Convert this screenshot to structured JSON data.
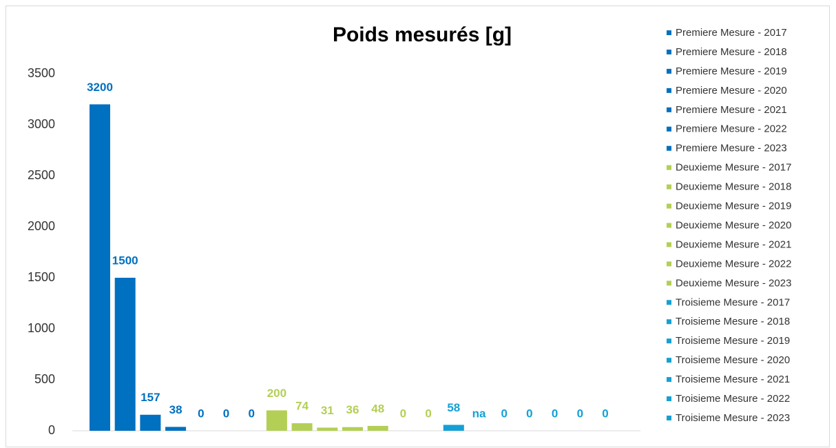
{
  "chart_data": {
    "type": "bar",
    "title": "Poids mesurés [g]",
    "ylim": [
      0,
      3500
    ],
    "yticks": [
      0,
      500,
      1000,
      1500,
      2000,
      2500,
      3000,
      3500
    ],
    "grid": false,
    "legend": "right",
    "series": [
      {
        "name": "Premiere Mesure - 2017",
        "color": "#0070c0",
        "values": [
          3200
        ]
      },
      {
        "name": "Premiere Mesure - 2018",
        "color": "#0070c0",
        "values": [
          1500
        ]
      },
      {
        "name": "Premiere Mesure - 2019",
        "color": "#0070c0",
        "values": [
          157
        ]
      },
      {
        "name": "Premiere Mesure - 2020",
        "color": "#0070c0",
        "values": [
          38
        ]
      },
      {
        "name": "Premiere Mesure - 2021",
        "color": "#0070c0",
        "values": [
          0
        ]
      },
      {
        "name": "Premiere Mesure - 2022",
        "color": "#0070c0",
        "values": [
          0
        ]
      },
      {
        "name": "Premiere Mesure - 2023",
        "color": "#0070c0",
        "values": [
          0
        ]
      },
      {
        "name": "Deuxieme Mesure - 2017",
        "color": "#b3cf55",
        "values": [
          200
        ]
      },
      {
        "name": "Deuxieme Mesure - 2018",
        "color": "#b3cf55",
        "values": [
          74
        ]
      },
      {
        "name": "Deuxieme Mesure - 2019",
        "color": "#b3cf55",
        "values": [
          31
        ]
      },
      {
        "name": "Deuxieme Mesure - 2020",
        "color": "#b3cf55",
        "values": [
          36
        ]
      },
      {
        "name": "Deuxieme Mesure - 2021",
        "color": "#b3cf55",
        "values": [
          48
        ]
      },
      {
        "name": "Deuxieme Mesure - 2022",
        "color": "#b3cf55",
        "values": [
          0
        ]
      },
      {
        "name": "Deuxieme Mesure - 2023",
        "color": "#b3cf55",
        "values": [
          0
        ]
      },
      {
        "name": "Troisieme Mesure - 2017",
        "color": "#14a0d6",
        "values": [
          58
        ]
      },
      {
        "name": "Troisieme Mesure - 2018",
        "color": "#14a0d6",
        "values": [
          null
        ],
        "value_labels": [
          "na"
        ]
      },
      {
        "name": "Troisieme Mesure - 2019",
        "color": "#14a0d6",
        "values": [
          0
        ]
      },
      {
        "name": "Troisieme Mesure - 2020",
        "color": "#14a0d6",
        "values": [
          0
        ]
      },
      {
        "name": "Troisieme Mesure - 2021",
        "color": "#14a0d6",
        "values": [
          0
        ]
      },
      {
        "name": "Troisieme Mesure - 2022",
        "color": "#14a0d6",
        "values": [
          0
        ]
      },
      {
        "name": "Troisieme Mesure - 2023",
        "color": "#14a0d6",
        "values": [
          0
        ]
      }
    ]
  }
}
